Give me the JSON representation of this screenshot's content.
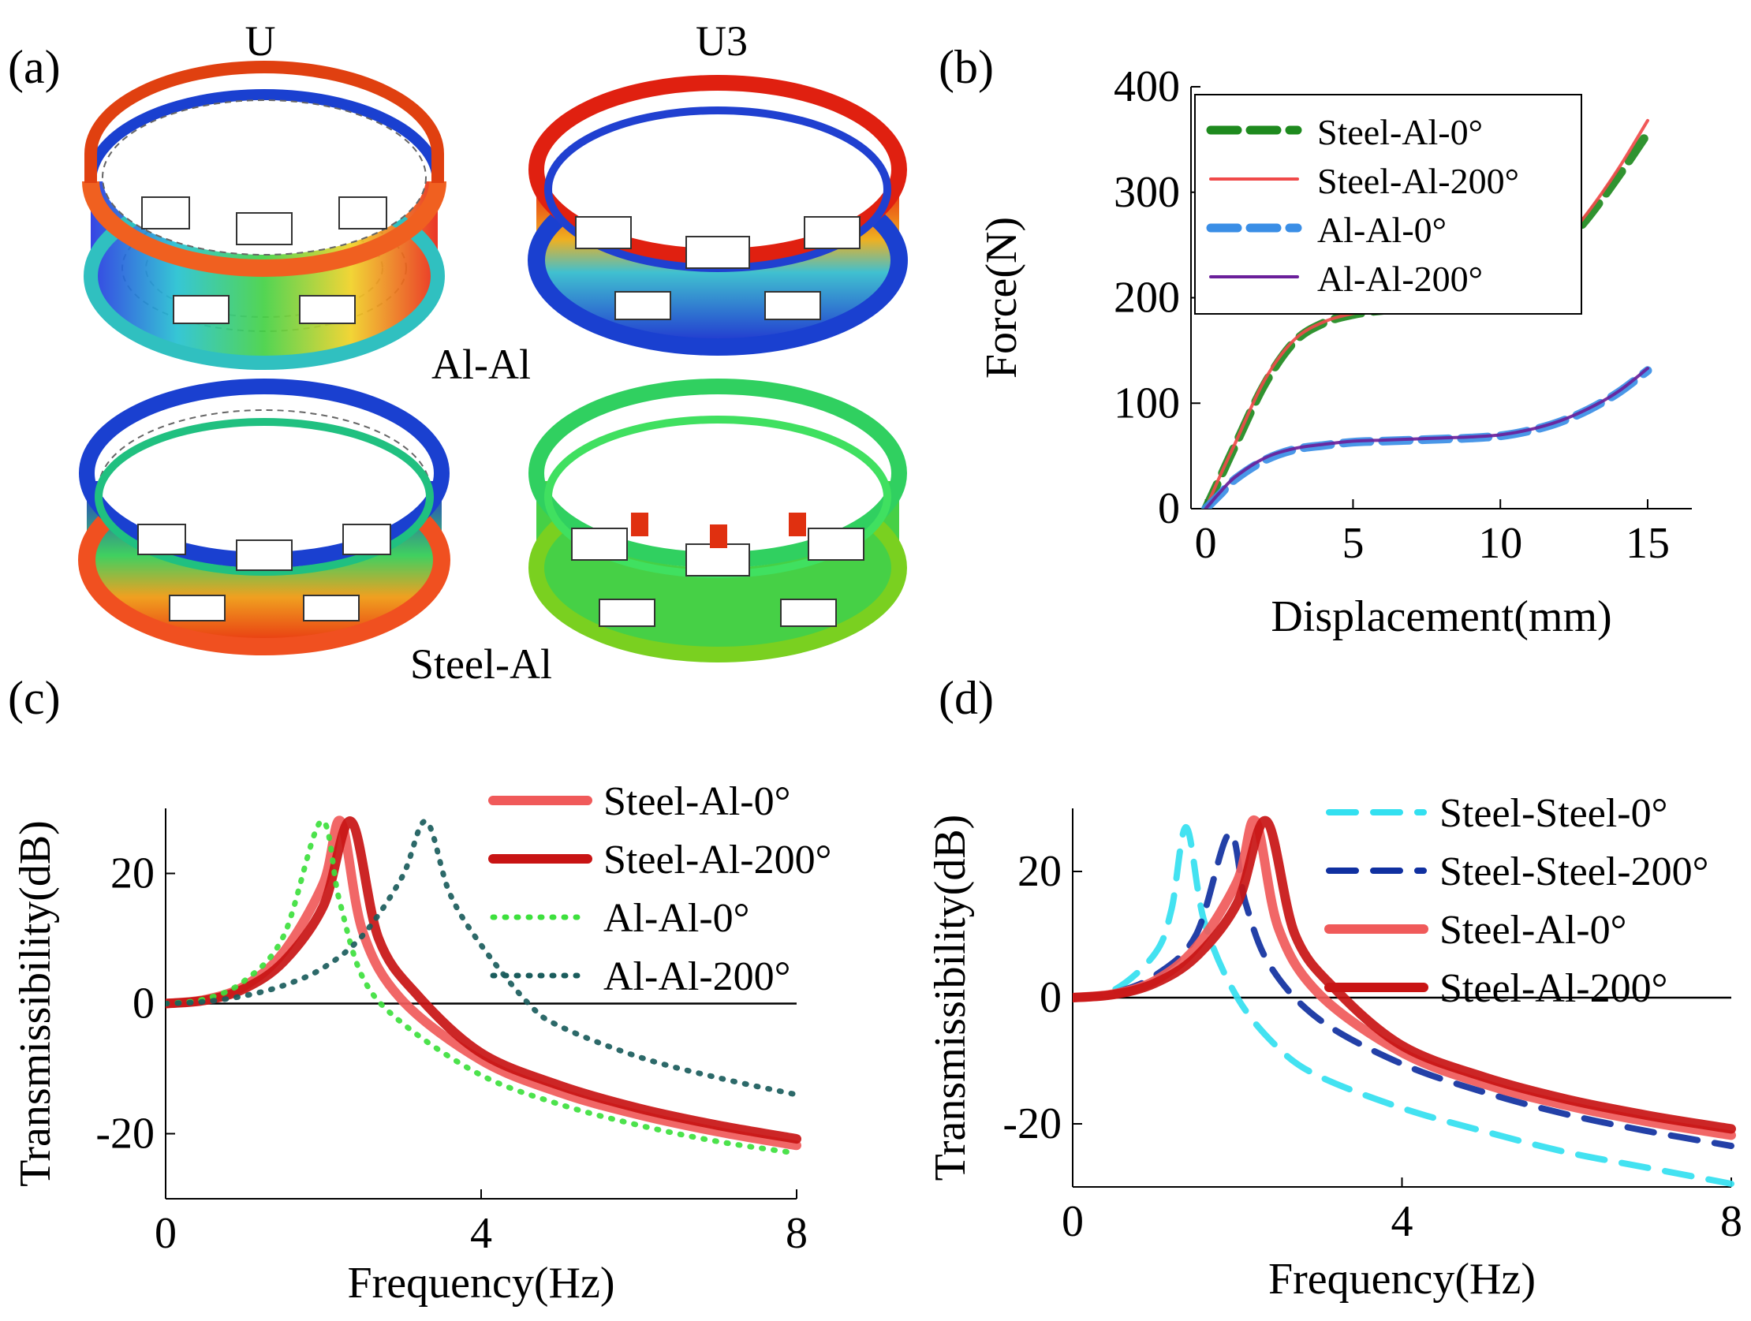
{
  "panel_labels": {
    "a": "(a)",
    "b": "(b)",
    "c": "(c)",
    "d": "(d)"
  },
  "panel_a": {
    "col_labels": [
      "U",
      "U3"
    ],
    "row_labels": [
      "Al-Al",
      "Steel-Al"
    ]
  },
  "chart_data": [
    {
      "panel": "b",
      "type": "line",
      "xlabel": "Displacement(mm)",
      "ylabel": "Force(N)",
      "xlim": [
        -0.5,
        16.5
      ],
      "ylim": [
        0,
        400
      ],
      "xticks": [
        "0",
        "5",
        "10",
        "15"
      ],
      "yticks": [
        "0",
        "100",
        "200",
        "300",
        "400"
      ],
      "legend": "top-left",
      "series": [
        {
          "name": "Steel-Al-0°",
          "color": "#1e8a1e",
          "style": "dashed-thick",
          "x": [
            0,
            0.5,
            1,
            2,
            3,
            4,
            5,
            6,
            7,
            8,
            9,
            10,
            11,
            12,
            13,
            14,
            15
          ],
          "y": [
            0,
            30,
            60,
            118,
            158,
            176,
            184,
            188,
            190,
            192,
            197,
            204,
            220,
            245,
            277,
            315,
            356
          ]
        },
        {
          "name": "Steel-Al-200°",
          "color": "#f04a4a",
          "style": "solid",
          "x": [
            0,
            0.5,
            1,
            2,
            3,
            4,
            5,
            6,
            7,
            8,
            9,
            10,
            11,
            12,
            13,
            14,
            15
          ],
          "y": [
            0,
            32,
            62,
            122,
            160,
            177,
            185,
            189,
            191,
            193,
            198,
            206,
            222,
            248,
            282,
            322,
            368
          ]
        },
        {
          "name": "Al-Al-0°",
          "color": "#3a8ee6",
          "style": "dashed-thick",
          "x": [
            0,
            0.5,
            1,
            2,
            3,
            4,
            5,
            6,
            7,
            8,
            9,
            10,
            11,
            12,
            13,
            14,
            15
          ],
          "y": [
            0,
            14,
            28,
            46,
            56,
            60,
            63,
            64,
            65,
            66,
            67,
            69,
            74,
            82,
            94,
            110,
            131
          ]
        },
        {
          "name": "Al-Al-200°",
          "color": "#6a1f9a",
          "style": "solid",
          "x": [
            0,
            0.5,
            1,
            2,
            3,
            4,
            5,
            6,
            7,
            8,
            9,
            10,
            11,
            12,
            13,
            14,
            15
          ],
          "y": [
            0,
            16,
            30,
            48,
            57,
            61,
            64,
            65,
            66,
            67,
            68,
            70,
            75,
            83,
            95,
            111,
            133
          ]
        }
      ]
    },
    {
      "panel": "c",
      "type": "line",
      "xlabel": "Frequency(Hz)",
      "ylabel": "Transmissibility(dB)",
      "xlim": [
        0,
        8
      ],
      "ylim": [
        -30,
        30
      ],
      "xticks": [
        "0",
        "4",
        "8"
      ],
      "yticks": [
        "-20",
        "0",
        "20"
      ],
      "legend": "top-right",
      "series": [
        {
          "name": "Steel-Al-0°",
          "color": "#f05a5a",
          "style": "solid-thick",
          "x": [
            0,
            0.5,
            1,
            1.5,
            2,
            2.22,
            2.5,
            3,
            4,
            5,
            6,
            7,
            8
          ],
          "y": [
            0,
            0.6,
            2.7,
            8.0,
            18.5,
            28,
            11,
            0.5,
            -8.7,
            -13.7,
            -17.1,
            -19.7,
            -21.8
          ]
        },
        {
          "name": "Steel-Al-200°",
          "color": "#c81414",
          "style": "solid-thick",
          "x": [
            0,
            0.5,
            1,
            1.5,
            2,
            2.35,
            2.7,
            3.2,
            4,
            5,
            6,
            7,
            8
          ],
          "y": [
            0,
            0.5,
            2.3,
            6.5,
            15,
            28,
            10,
            1.2,
            -7.6,
            -12.6,
            -16.1,
            -18.7,
            -20.8
          ]
        },
        {
          "name": "Al-Al-0°",
          "color": "#3de03d",
          "style": "dotted",
          "x": [
            0,
            0.5,
            1,
            1.5,
            1.97,
            2.2,
            2.5,
            3,
            4,
            5,
            6,
            7,
            8
          ],
          "y": [
            0,
            0.7,
            3.5,
            10.5,
            28,
            16,
            4,
            -3,
            -11,
            -15.5,
            -18.7,
            -21.2,
            -23
          ]
        },
        {
          "name": "Al-Al-200°",
          "color": "#1a5c5c",
          "style": "dotted",
          "x": [
            0,
            0.5,
            1,
            1.5,
            2,
            2.5,
            3,
            3.3,
            3.6,
            4,
            4.6,
            5,
            6,
            7,
            8
          ],
          "y": [
            0,
            0.3,
            1.2,
            2.8,
            5.5,
            10.5,
            19.5,
            28,
            17,
            9,
            0,
            -3.5,
            -8.2,
            -11.4,
            -14
          ]
        }
      ]
    },
    {
      "panel": "d",
      "type": "line",
      "xlabel": "Frequency(Hz)",
      "ylabel": "Transmissibility(dB)",
      "xlim": [
        0,
        8
      ],
      "ylim": [
        -30,
        30
      ],
      "xticks": [
        "0",
        "4",
        "8"
      ],
      "yticks": [
        "-20",
        "0",
        "20"
      ],
      "legend": "top-right",
      "series": [
        {
          "name": "Steel-Steel-0°",
          "color": "#33e0f0",
          "style": "dashed",
          "x": [
            0,
            0.5,
            1,
            1.2,
            1.38,
            1.6,
            2,
            2.5,
            3,
            4,
            5,
            6,
            7,
            8
          ],
          "y": [
            0,
            1.2,
            7,
            14,
            27,
            12,
            0,
            -8,
            -12.5,
            -17.5,
            -21.2,
            -24.5,
            -27,
            -29.5
          ]
        },
        {
          "name": "Steel-Steel-200°",
          "color": "#1030a0",
          "style": "dashed",
          "x": [
            0,
            0.5,
            1,
            1.5,
            1.9,
            2.1,
            2.4,
            3,
            4,
            5,
            6,
            7,
            8
          ],
          "y": [
            0,
            0.8,
            3.5,
            10,
            26,
            15,
            5,
            -3.5,
            -10.5,
            -15,
            -18.5,
            -21.2,
            -23.5
          ]
        },
        {
          "name": "Steel-Al-0°",
          "color": "#f05a5a",
          "style": "solid-thick",
          "x": [
            0,
            0.5,
            1,
            1.5,
            2,
            2.22,
            2.5,
            3,
            4,
            5,
            6,
            7,
            8
          ],
          "y": [
            0,
            0.6,
            2.7,
            8.0,
            18.5,
            28,
            11,
            0.5,
            -8.7,
            -13.7,
            -17.1,
            -19.7,
            -21.8
          ]
        },
        {
          "name": "Steel-Al-200°",
          "color": "#c81414",
          "style": "solid-thick",
          "x": [
            0,
            0.5,
            1,
            1.5,
            2,
            2.35,
            2.7,
            3.2,
            4,
            5,
            6,
            7,
            8
          ],
          "y": [
            0,
            0.5,
            2.3,
            6.5,
            15,
            28,
            10,
            1.2,
            -7.6,
            -12.6,
            -16.1,
            -18.7,
            -20.8
          ]
        }
      ]
    }
  ]
}
